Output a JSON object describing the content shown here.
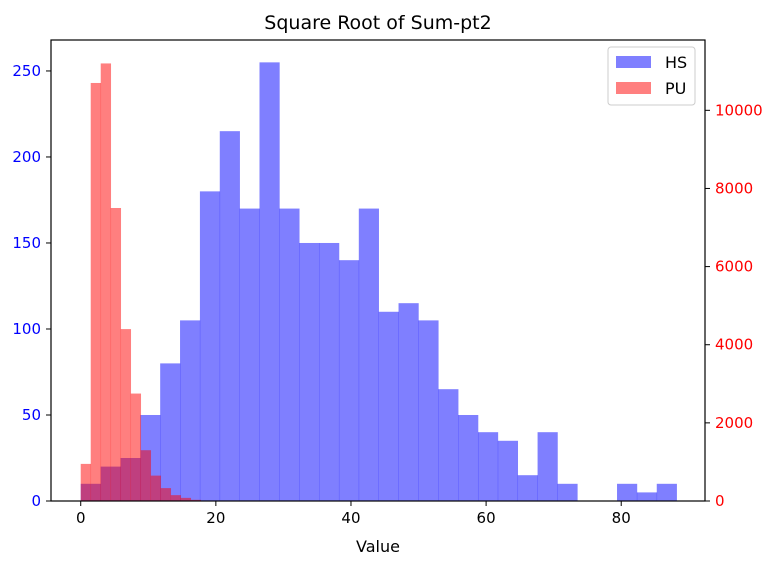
{
  "chart_data": {
    "type": "bar",
    "title": "Square Root of Sum-pt2",
    "xlabel": "Value",
    "ylabel_left": "",
    "ylabel_right": "",
    "xlim": [
      -4.4,
      92.4
    ],
    "ylim_left": [
      0,
      268
    ],
    "ylim_right": [
      0,
      11800
    ],
    "x_ticks": [
      0,
      20,
      40,
      60,
      80
    ],
    "y_ticks_left": [
      0,
      50,
      100,
      150,
      200,
      250
    ],
    "y_ticks_right": [
      0,
      2000,
      4000,
      6000,
      8000,
      10000
    ],
    "axis_colors": {
      "left": "#0000ff",
      "right": "#ff0000"
    },
    "legend": {
      "placement": "top-right"
    },
    "grid": false,
    "series": [
      {
        "name": "HS",
        "axis": "left",
        "color": "#0000ff",
        "alpha": 0.5,
        "bin_width": 2.94,
        "bins_start": [
          0.0,
          2.94,
          5.88,
          8.82,
          11.76,
          14.7,
          17.64,
          20.58,
          23.52,
          26.46,
          29.4,
          32.34,
          35.28,
          38.22,
          41.16,
          44.1,
          47.04,
          49.98,
          52.92,
          55.86,
          58.8,
          61.74,
          64.68,
          67.62,
          70.56,
          73.5,
          76.44,
          79.38,
          82.32,
          85.26
        ],
        "values": [
          10,
          20,
          25,
          50,
          80,
          105,
          180,
          215,
          170,
          255,
          170,
          150,
          150,
          140,
          170,
          110,
          115,
          105,
          65,
          50,
          40,
          35,
          15,
          40,
          10,
          0,
          0,
          10,
          5,
          10
        ]
      },
      {
        "name": "PU",
        "axis": "right",
        "color": "#ff0000",
        "alpha": 0.5,
        "bin_width": 1.48,
        "bins_start": [
          0.0,
          1.48,
          2.96,
          4.44,
          5.92,
          7.4,
          8.88,
          10.36,
          11.84,
          13.32,
          14.8,
          16.28
        ],
        "values": [
          950,
          10700,
          11200,
          7500,
          4400,
          2750,
          1300,
          650,
          330,
          150,
          80,
          30
        ]
      }
    ]
  }
}
